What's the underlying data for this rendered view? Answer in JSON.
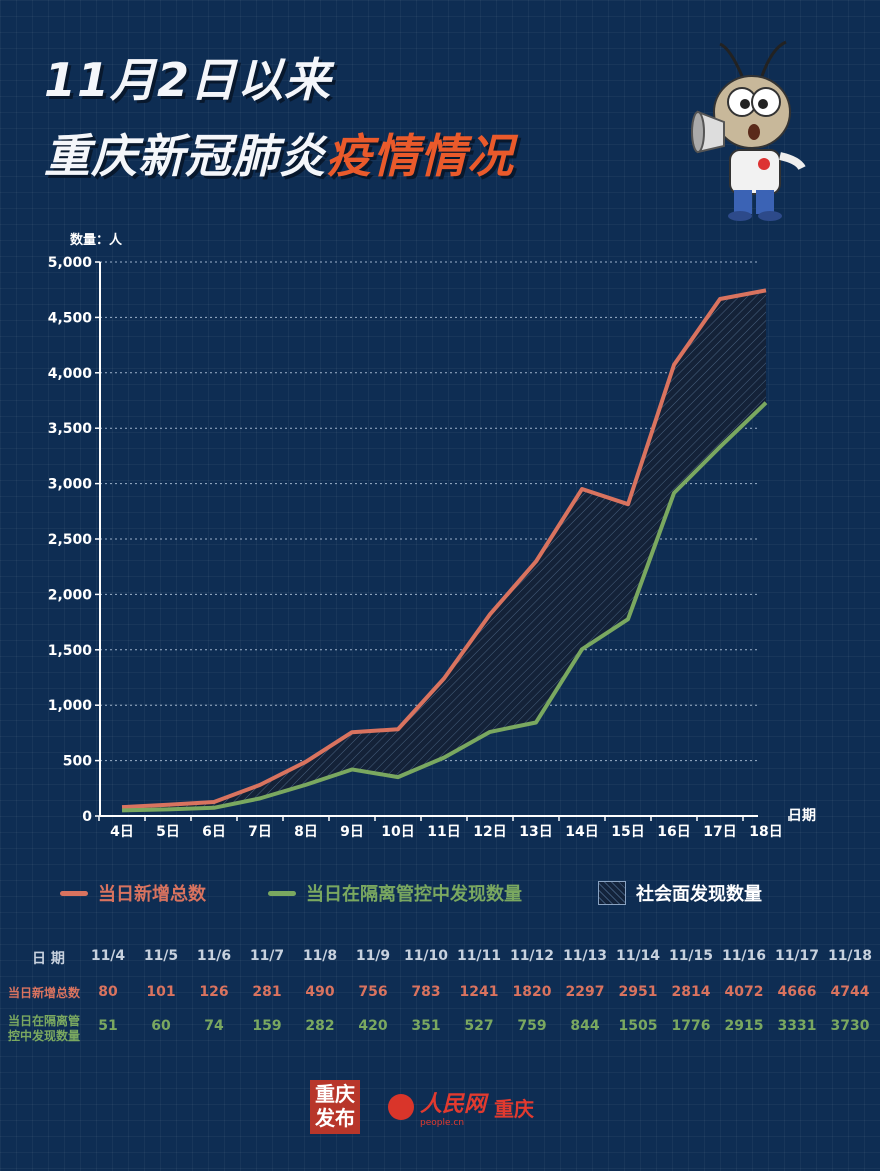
{
  "title": {
    "line1": "11月2日以来",
    "line2_main": "重庆新冠肺炎",
    "line2_highlight": "疫情情况"
  },
  "colors": {
    "background": "#0e2d53",
    "total": "#d9735f",
    "quarantine": "#7aa860",
    "highlight": "#ea5a2b"
  },
  "chart_data": {
    "type": "line",
    "ylabel": "数量：人",
    "xlabel": "日期",
    "ylim": [
      0,
      5000
    ],
    "yticks": [
      "0",
      "500",
      "1,000",
      "1,500",
      "2,000",
      "2,500",
      "3,000",
      "3,500",
      "4,000",
      "4,500",
      "5,000"
    ],
    "categories": [
      "4日",
      "5日",
      "6日",
      "7日",
      "8日",
      "9日",
      "10日",
      "11日",
      "12日",
      "13日",
      "14日",
      "15日",
      "16日",
      "17日",
      "18日"
    ],
    "series": [
      {
        "name": "当日新增总数",
        "values": [
          80,
          101,
          126,
          281,
          490,
          756,
          783,
          1241,
          1820,
          2297,
          2951,
          2814,
          4072,
          4666,
          4744
        ]
      },
      {
        "name": "当日在隔离管控中发现数量",
        "values": [
          51,
          60,
          74,
          159,
          282,
          420,
          351,
          527,
          759,
          844,
          1505,
          1776,
          2915,
          3331,
          3730
        ]
      }
    ],
    "area_label": "社会面发现数量",
    "grid": "horizontal-dotted",
    "legend": "bottom"
  },
  "table": {
    "header_label": "日 期",
    "dates": [
      "11/4",
      "11/5",
      "11/6",
      "11/7",
      "11/8",
      "11/9",
      "11/10",
      "11/11",
      "11/12",
      "11/13",
      "11/14",
      "11/15",
      "11/16",
      "11/17",
      "11/18"
    ],
    "total_label": "当日新增总数",
    "total_values": [
      "80",
      "101",
      "126",
      "281",
      "490",
      "756",
      "783",
      "1241",
      "1820",
      "2297",
      "2951",
      "2814",
      "4072",
      "4666",
      "4744"
    ],
    "quarantine_label_1": "当日在隔离管",
    "quarantine_label_2": "控中发现数量",
    "quarantine_values": [
      "51",
      "60",
      "74",
      "159",
      "282",
      "420",
      "351",
      "527",
      "759",
      "844",
      "1505",
      "1776",
      "2915",
      "3331",
      "3730"
    ]
  },
  "logos": {
    "cq_logo_text": "重庆发布",
    "people_name": "人民网",
    "people_sub": "people.cn",
    "people_city": "重庆"
  }
}
